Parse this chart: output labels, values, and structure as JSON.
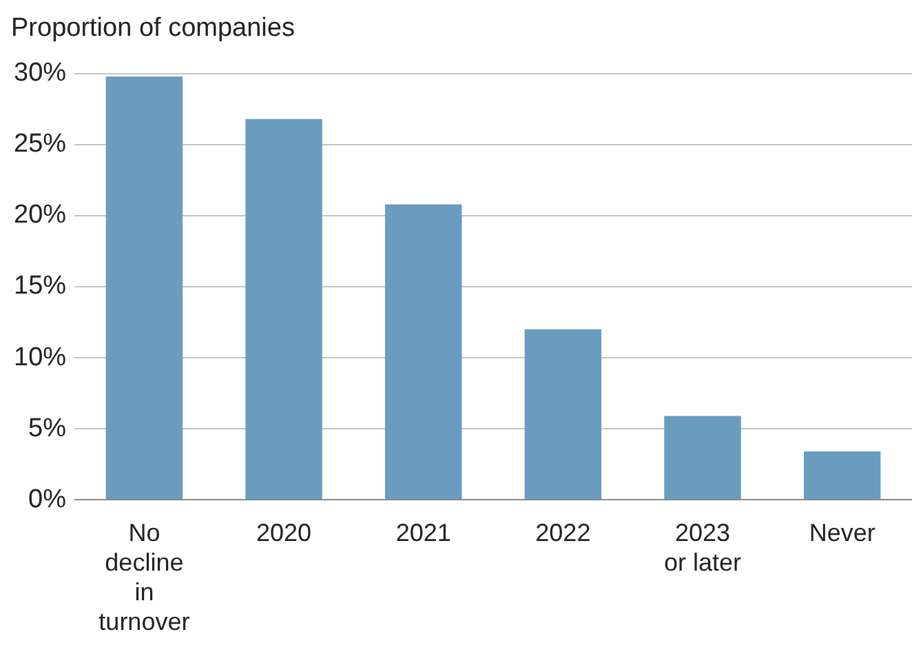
{
  "chart_data": {
    "type": "bar",
    "ylabel": "Proportion of companies",
    "categories": [
      "No decline in turnover",
      "2020",
      "2021",
      "2022",
      "2023 or later",
      "Never"
    ],
    "values": [
      29.8,
      26.8,
      20.8,
      12.0,
      5.9,
      3.4
    ],
    "color": "#6a9cc0",
    "ylim": [
      0,
      30
    ],
    "yticks": [
      {
        "value": 0,
        "label": "0%"
      },
      {
        "value": 5,
        "label": "5%"
      },
      {
        "value": 10,
        "label": "10%"
      },
      {
        "value": 15,
        "label": "15%"
      },
      {
        "value": 20,
        "label": "20%"
      },
      {
        "value": 25,
        "label": "25%"
      },
      {
        "value": 30,
        "label": "30%"
      }
    ],
    "grid": "y",
    "legend": false
  }
}
